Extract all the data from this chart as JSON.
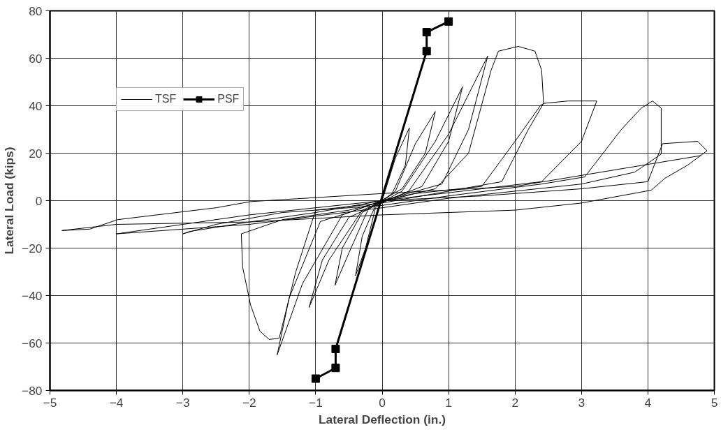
{
  "chart_data": {
    "type": "line",
    "xlabel": "Lateral Deflection (in.)",
    "ylabel": "Lateral Load (kips)",
    "xlim": [
      -5,
      5
    ],
    "ylim": [
      -80,
      80
    ],
    "xticks": [
      -5,
      -4,
      -3,
      -2,
      -1,
      0,
      1,
      2,
      3,
      4,
      5
    ],
    "yticks": [
      -80,
      -60,
      -40,
      -20,
      0,
      20,
      40,
      60,
      80
    ],
    "grid": true,
    "legend": "top left",
    "series": [
      {
        "name": "TSF",
        "color": "#000000",
        "marker": "none",
        "x": [
          0,
          0.2,
          0.41,
          0.35,
          0.15,
          -0.1,
          -0.25,
          -0.4,
          -0.3,
          -0.1,
          0.2,
          0.5,
          0.8,
          0.65,
          0.3,
          -0.2,
          -0.5,
          -0.71,
          -0.6,
          -0.3,
          0.3,
          0.8,
          1.21,
          1.0,
          0.6,
          -0.3,
          -0.8,
          -1.1,
          -0.9,
          -0.5,
          0.4,
          1.0,
          1.59,
          1.3,
          0.9,
          0,
          -0.6,
          -1.2,
          -1.58,
          -1.4,
          -0.93,
          -0.5,
          0,
          0.8,
          1.3,
          1.64,
          1.75,
          2.05,
          2.3,
          2.4,
          2.43,
          2.2,
          1.8,
          1.0,
          0,
          -1.0,
          -1.3,
          -1.55,
          -1.7,
          -1.84,
          -1.98,
          -2.1,
          -2.12,
          -1.5,
          -0.5,
          0.5,
          1.5,
          2.0,
          2.38,
          2.43,
          2.8,
          3.23,
          3.0,
          2.4,
          1.5,
          0,
          -1.0,
          -2.0,
          -2.9,
          -3.0,
          -2.5,
          -1.5,
          0,
          1.0,
          2.4,
          3.05,
          3.6,
          3.9,
          4.07,
          4.2,
          4.2,
          3.8,
          3.0,
          2.0,
          1.0,
          0,
          -2.0,
          -3.5,
          -4.0,
          -3.5,
          -2.0,
          -1.0,
          0,
          1.5,
          3.0,
          4.0,
          4.22,
          4.75,
          4.89,
          4.6,
          4.26,
          4.05,
          3.0,
          2.0,
          1.0,
          0,
          -2.0,
          -4.0,
          -4.82,
          -4.4,
          -3.98,
          -2.5,
          -1.98,
          0,
          2.0,
          4.8
        ],
        "values": [
          0,
          18,
          30.7,
          15,
          3,
          -3,
          -20,
          -31.6,
          -15,
          -2,
          4,
          24,
          37.6,
          20,
          5,
          -3,
          -22,
          -35.7,
          -20,
          -5,
          4,
          25,
          48,
          25,
          6,
          -4,
          -25,
          -45,
          -25,
          -7,
          4,
          28,
          61,
          30,
          7,
          0,
          -6,
          -35,
          -65,
          -41,
          -8.8,
          -5,
          0,
          5,
          20,
          55,
          63,
          65,
          63,
          55,
          41,
          30,
          8,
          4,
          -1,
          -4,
          -30,
          -58,
          -58.5,
          -55,
          -44,
          -28,
          -14,
          -8,
          -4,
          3,
          6,
          25,
          40,
          41,
          42,
          42,
          25,
          8,
          5,
          0,
          -5,
          -9,
          -13,
          -14,
          -10,
          -5,
          -2,
          2,
          7,
          10,
          30,
          39,
          42,
          39,
          19.6,
          12,
          7,
          4,
          1,
          -3,
          -10,
          -13,
          -14,
          -12,
          -6,
          -3,
          0,
          2,
          5,
          8,
          24,
          25,
          21,
          15,
          9.5,
          4.4,
          -1,
          -4,
          -5,
          -6,
          -9,
          -10,
          -12.6,
          -12,
          -8,
          -3,
          -0.4,
          3,
          6,
          19
        ]
      },
      {
        "name": "PSF",
        "color": "#000000",
        "marker": "square",
        "x": [
          -1.0,
          -0.7,
          -0.7,
          0.67,
          0.67,
          1.0
        ],
        "values": [
          -75,
          -70.5,
          -62.5,
          63,
          71,
          75.5
        ]
      }
    ]
  }
}
